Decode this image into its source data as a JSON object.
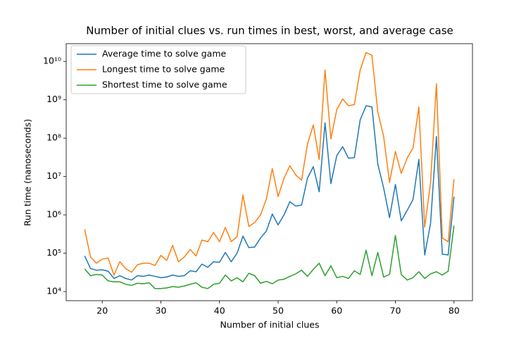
{
  "chart_data": {
    "type": "line",
    "title": "Number of initial clues vs. run times in best, worst, and average case",
    "x_label": "Number of initial clues",
    "y_label": "Run time (nanoseconds)",
    "log_y": true,
    "legend": "upper left",
    "x": [
      17,
      18,
      19,
      20,
      21,
      22,
      23,
      24,
      25,
      26,
      27,
      28,
      29,
      30,
      31,
      32,
      33,
      34,
      35,
      36,
      37,
      38,
      39,
      40,
      41,
      42,
      43,
      44,
      45,
      46,
      47,
      48,
      49,
      50,
      51,
      52,
      53,
      54,
      55,
      56,
      57,
      58,
      59,
      60,
      61,
      62,
      63,
      64,
      65,
      66,
      67,
      68,
      69,
      70,
      71,
      72,
      73,
      74,
      75,
      76,
      77,
      78,
      79,
      80
    ],
    "xlim": [
      13.85,
      83.15
    ],
    "xticks": [
      20,
      30,
      40,
      50,
      60,
      70,
      80
    ],
    "ylim": [
      5800,
      29000000000
    ],
    "yticks": [
      {
        "value": 10000,
        "label": "10⁴"
      },
      {
        "value": 100000,
        "label": "10⁵"
      },
      {
        "value": 1000000,
        "label": "10⁶"
      },
      {
        "value": 10000000,
        "label": "10⁷"
      },
      {
        "value": 100000000,
        "label": "10⁸"
      },
      {
        "value": 1000000000,
        "label": "10⁹"
      },
      {
        "value": 10000000000,
        "label": "10¹⁰"
      }
    ],
    "series": [
      {
        "name": "Average time to solve game",
        "color": "#1f77b4",
        "values": [
          85000,
          40000,
          36000,
          37000,
          34000,
          22000,
          26000,
          22000,
          20000,
          26000,
          25000,
          27000,
          25000,
          23000,
          24000,
          27000,
          25000,
          26000,
          35000,
          33000,
          52000,
          43000,
          60000,
          58000,
          105000,
          60000,
          100000,
          280000,
          140000,
          145000,
          250000,
          380000,
          1050000,
          550000,
          1000000,
          2200000,
          1700000,
          1800000,
          9000000,
          18000000,
          4000000,
          250000000,
          6500000,
          35000000,
          60000000,
          30000000,
          31000000,
          300000000,
          700000000,
          650000000,
          21000000,
          5000000,
          850000,
          6200000,
          700000,
          1300000,
          2500000,
          28000000,
          90000,
          600000,
          110000000,
          95000,
          90000,
          3000000
        ]
      },
      {
        "name": "Longest time to solve game",
        "color": "#ff7f0e",
        "values": [
          420000,
          80000,
          55000,
          70000,
          75000,
          27000,
          60000,
          40000,
          32000,
          50000,
          55000,
          55000,
          48000,
          88000,
          65000,
          160000,
          60000,
          80000,
          125000,
          85000,
          220000,
          200000,
          350000,
          200000,
          470000,
          200000,
          270000,
          3300000,
          500000,
          630000,
          1000000,
          2600000,
          16000000,
          3000000,
          9000000,
          19000000,
          11000000,
          8000000,
          70000000,
          220000000,
          28000000,
          6000000000,
          95000000,
          550000000,
          1050000000,
          700000000,
          750000000,
          6000000000,
          17000000000,
          14500000000,
          480000000,
          110000000,
          7000000,
          45000000,
          12000000,
          30000000,
          55000000,
          650000000,
          480000,
          7000000,
          2600000000,
          250000,
          200000,
          8500000
        ]
      },
      {
        "name": "Shortest time to solve game",
        "color": "#2ca02c",
        "values": [
          39000,
          26000,
          28000,
          27000,
          19000,
          18000,
          18000,
          15500,
          14500,
          16500,
          16000,
          17000,
          12000,
          12000,
          12500,
          13500,
          13000,
          14000,
          15500,
          17000,
          13000,
          12000,
          15500,
          16500,
          27000,
          19000,
          23000,
          18000,
          30000,
          26000,
          16500,
          18500,
          16000,
          20000,
          21000,
          25000,
          29000,
          36000,
          25000,
          38000,
          55000,
          26000,
          47000,
          23000,
          25000,
          22000,
          35000,
          28000,
          120000,
          26000,
          105000,
          24000,
          28000,
          290000,
          28000,
          20000,
          23000,
          33000,
          22000,
          29000,
          33000,
          27000,
          34000,
          520000
        ]
      }
    ]
  }
}
